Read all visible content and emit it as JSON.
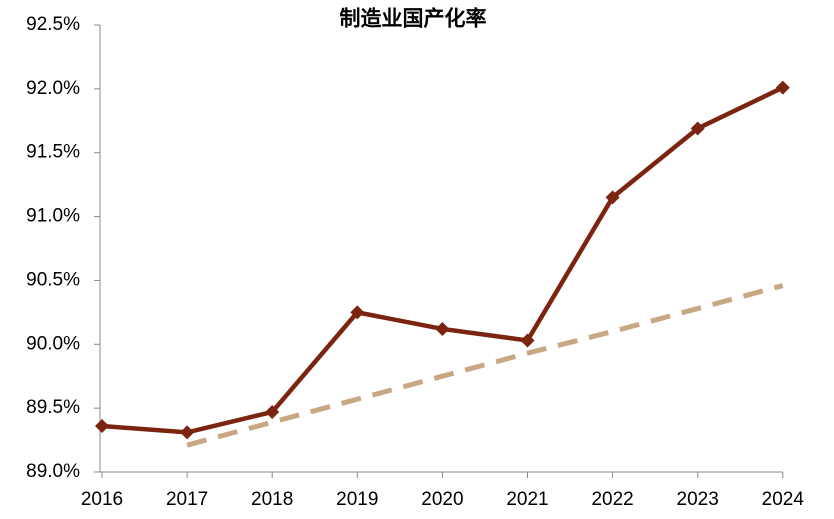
{
  "chart_data": {
    "type": "line",
    "title": "制造业国产化率",
    "categories": [
      "2016",
      "2017",
      "2018",
      "2019",
      "2020",
      "2021",
      "2022",
      "2023",
      "2024"
    ],
    "series": [
      {
        "color": "#7b2410",
        "values": [
          89.36,
          89.31,
          89.47,
          90.25,
          90.12,
          90.03,
          91.15,
          91.69,
          92.01
        ]
      },
      {
        "color": "#c8a882",
        "dashed": true,
        "values": [
          null,
          89.21,
          89.39,
          89.57,
          89.75,
          89.93,
          90.1,
          90.28,
          90.46
        ]
      }
    ],
    "ylim": [
      89.0,
      92.5
    ],
    "yticks": [
      {
        "value": 89.0,
        "label": "89.0%"
      },
      {
        "value": 89.5,
        "label": "89.5%"
      },
      {
        "value": 90.0,
        "label": "90.0%"
      },
      {
        "value": 90.5,
        "label": "90.5%"
      },
      {
        "value": 91.0,
        "label": "91.0%"
      },
      {
        "value": 91.5,
        "label": "91.5%"
      },
      {
        "value": 92.0,
        "label": "92.0%"
      },
      {
        "value": 92.5,
        "label": "92.5%"
      }
    ],
    "grid": false
  }
}
